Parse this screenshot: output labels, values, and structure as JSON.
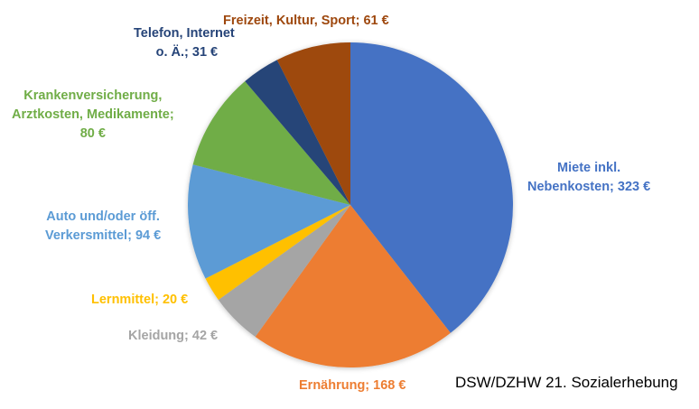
{
  "chart_data": {
    "type": "pie",
    "title": "",
    "unit": "€",
    "start_angle_deg": 0,
    "direction": "clockwise",
    "categories": [
      "Miete inkl. Nebenkosten",
      "Ernährung",
      "Kleidung",
      "Lernmittel",
      "Auto und/oder öff. Verkersmittel",
      "Krankenversicherung, Arztkosten, Medikamente",
      "Telefon, Internet o. Ä.",
      "Freizeit, Kultur, Sport"
    ],
    "values": [
      323,
      168,
      42,
      20,
      94,
      80,
      31,
      61
    ],
    "colors": [
      "#4472C4",
      "#ED7D31",
      "#A5A5A5",
      "#FFC000",
      "#5B9BD5",
      "#70AD47",
      "#264478",
      "#9E480E"
    ],
    "labels": [
      {
        "lines": [
          "Miete inkl.",
          "Nebenkosten; 323 €"
        ],
        "color": "#4472C4"
      },
      {
        "lines": [
          "Ernährung; 168 €"
        ],
        "color": "#ED7D31"
      },
      {
        "lines": [
          "Kleidung; 42 €"
        ],
        "color": "#A5A5A5"
      },
      {
        "lines": [
          "Lernmittel; 20 €"
        ],
        "color": "#FFC000"
      },
      {
        "lines": [
          "Auto und/oder öff.",
          "Verkersmittel; 94 €"
        ],
        "color": "#5B9BD5"
      },
      {
        "lines": [
          "Krankenversicherung,",
          "Arztkosten, Medikamente;",
          "80 €"
        ],
        "color": "#70AD47"
      },
      {
        "lines": [
          "Telefon, Internet",
          "o. Ä.; 31 €"
        ],
        "color": "#264478"
      },
      {
        "lines": [
          "Freizeit, Kultur, Sport; 61 €"
        ],
        "color": "#9E480E"
      }
    ],
    "source": "DSW/DZHW 21. Sozialerhebung",
    "legend": "none (data labels)"
  },
  "labels": {
    "miete_1": "Miete inkl.",
    "miete_2": "Nebenkosten; 323 €",
    "ernaehrung": "Ernährung; 168 €",
    "kleidung": "Kleidung; 42 €",
    "lernmittel": "Lernmittel; 20 €",
    "auto_1": "Auto und/oder öff.",
    "auto_2": "Verkersmittel; 94 €",
    "kranken_1": "Krankenversicherung,",
    "kranken_2": "Arztkosten, Medikamente;",
    "kranken_3": "80 €",
    "telefon_1": "Telefon, Internet",
    "telefon_2": "o. Ä.; 31 €",
    "freizeit": "Freizeit, Kultur, Sport; 61 €"
  },
  "source_text": "DSW/DZHW 21. Sozialerhebung"
}
